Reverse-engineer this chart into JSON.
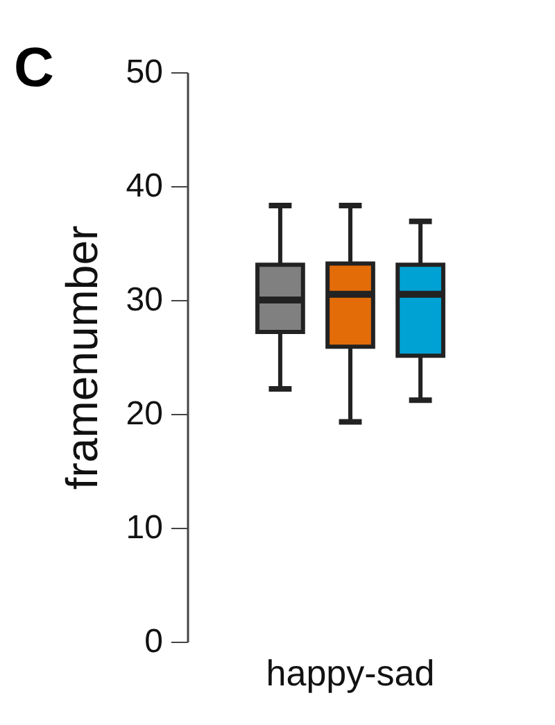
{
  "chart_data": {
    "type": "box",
    "categories": [
      "happy-sad"
    ],
    "ylabel": "framenumber",
    "ylim": [
      0,
      50
    ],
    "yticks": [
      0,
      10,
      20,
      30,
      40,
      50
    ],
    "grid": false,
    "legend": false,
    "annotations": [
      "C"
    ],
    "series": [
      {
        "color": "#808080",
        "boxes": [
          {
            "low": 22.2,
            "q1": 27.2,
            "median": 30.0,
            "q3": 33.1,
            "high": 38.3
          }
        ]
      },
      {
        "color": "#e36c09",
        "boxes": [
          {
            "low": 19.3,
            "q1": 25.9,
            "median": 30.5,
            "q3": 33.2,
            "high": 38.3
          }
        ]
      },
      {
        "color": "#00a2d4",
        "boxes": [
          {
            "low": 21.2,
            "q1": 25.1,
            "median": 30.5,
            "q3": 33.1,
            "high": 36.9
          }
        ]
      }
    ]
  }
}
